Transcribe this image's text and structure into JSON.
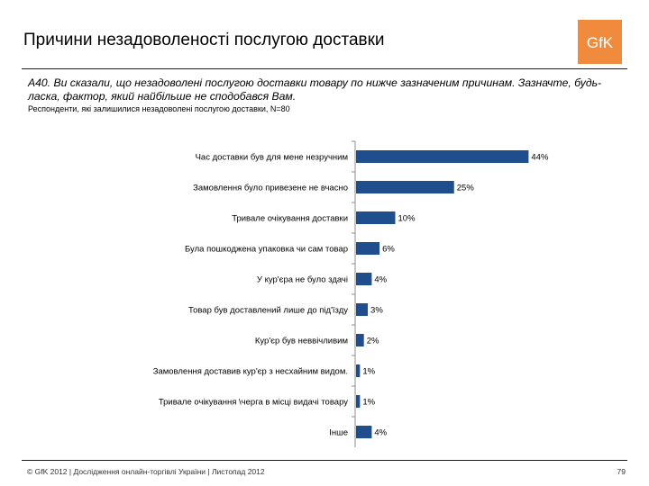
{
  "header": {
    "title": "Причини незадоволеності послугою доставки",
    "logo_text": "GfK"
  },
  "question": {
    "text": "А40. Ви сказали, що незадоволені послугою доставки товару  по нижче зазначеним причинам. Зазначте, будь-ласка, фактор, який найбільше не сподобався Вам.",
    "respondents": "Респонденти, які залишилися незадоволені послугою доставки, N=80"
  },
  "chart_data": {
    "type": "bar",
    "orientation": "horizontal",
    "categories": [
      "Час доставки був для мене незручним",
      "Замовлення було привезене не вчасно",
      "Тривале очікування доставки",
      "Була пошкоджена упаковка чи сам товар",
      "У кур'єра не було здачі",
      "Товар був доставлений лише до під'їзду",
      "Кур'єр був неввічливим",
      "Замовлення доставив кур'єр з несхайним видом.",
      "Тривале очікування \\черга в місці видачі товару",
      "Інше"
    ],
    "values": [
      44,
      25,
      10,
      6,
      4,
      3,
      2,
      1,
      1,
      4
    ],
    "value_labels": [
      "44%",
      "25%",
      "10%",
      "6%",
      "4%",
      "3%",
      "2%",
      "1%",
      "1%",
      "4%"
    ],
    "unit": "%",
    "xlim": [
      0,
      100
    ],
    "bar_color": "#1f4e8c"
  },
  "footer": {
    "text": "© GfK 2012 | Дослідження онлайн-торгівлі України | Листопад 2012",
    "page": "79"
  },
  "colors": {
    "logo": "#f08b3e",
    "bar": "#1f4e8c",
    "axis": "#8c8c8c"
  }
}
